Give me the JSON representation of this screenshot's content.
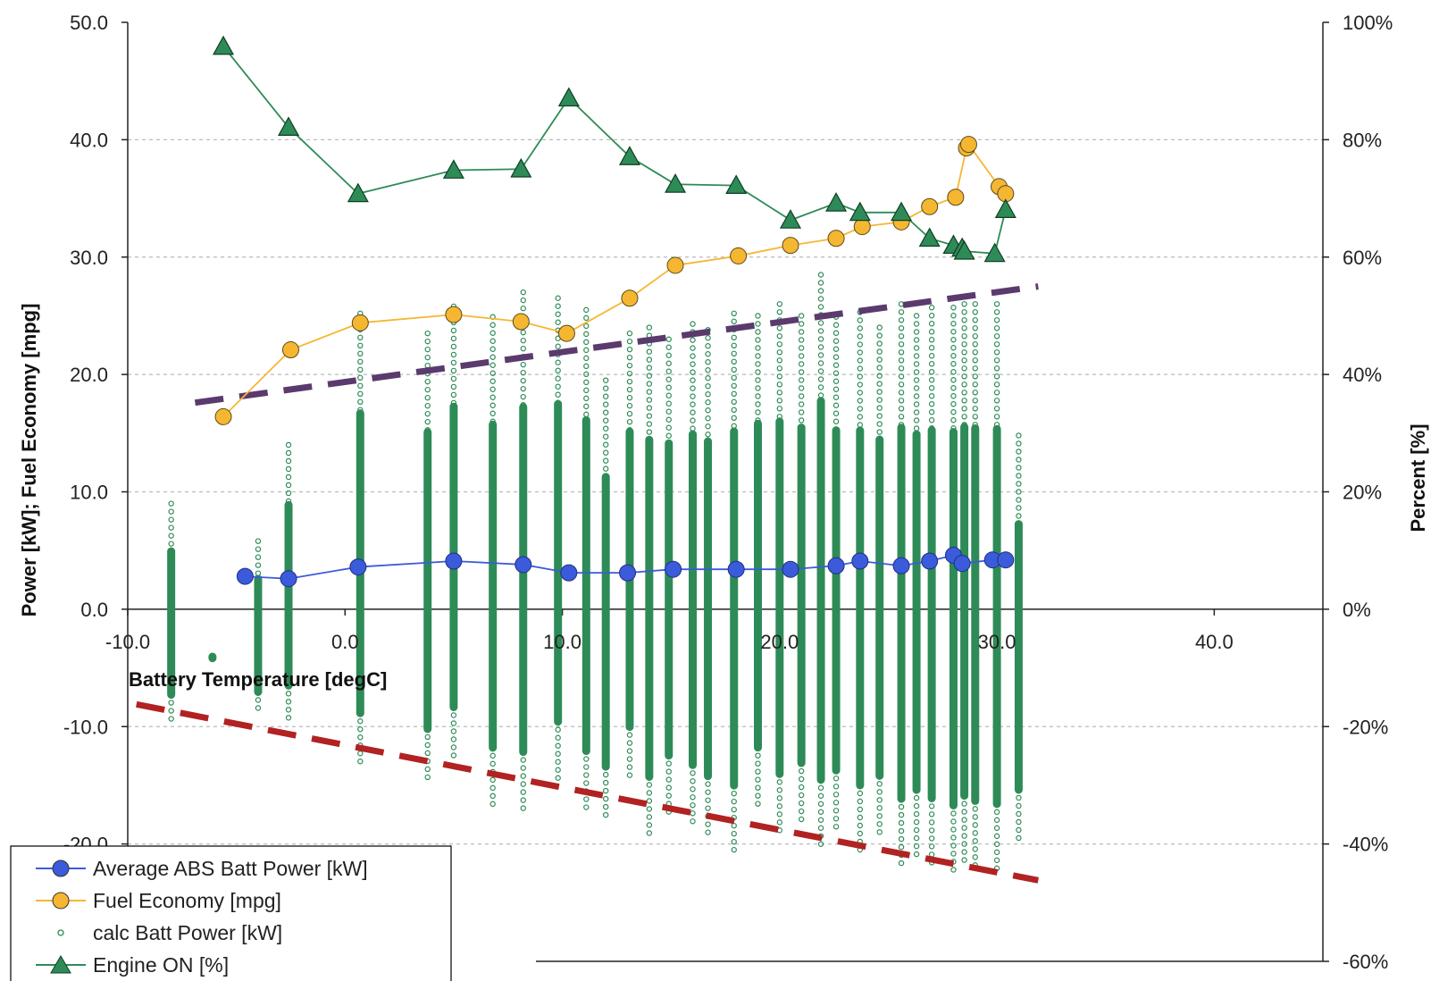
{
  "chart_data": {
    "type": "scatter",
    "xlabel": "Battery Temperature [degC]",
    "ylabel": "Power [kW]; Fuel Economy [mpg]",
    "y2label": "Percent [%]",
    "xlim": [
      -10,
      45
    ],
    "ylim": [
      -30,
      50
    ],
    "y2lim": [
      -60,
      100
    ],
    "grid": "horizontal dashed",
    "legend_position": "bottom-left",
    "x_ticks": [
      "-10.0",
      "0.0",
      "10.0",
      "20.0",
      "30.0",
      "40.0"
    ],
    "y_ticks": [
      "50.0",
      "40.0",
      "30.0",
      "20.0",
      "10.0",
      "0.0",
      "-10.0",
      "-20.0"
    ],
    "y2_ticks": [
      "100%",
      "80%",
      "60%",
      "40%",
      "20%",
      "0%",
      "-20%",
      "-40%",
      "-60%"
    ],
    "colors": {
      "abs_power": "#3b5bdb",
      "fuel_economy": "#f5b731",
      "batt_power": "#2e8b57",
      "engine_on": "#2e8b57",
      "upper_line": "#5b3a6e",
      "lower_line": "#b22222"
    },
    "series": [
      {
        "name": "Average ABS Batt Power [kW]",
        "axis": "left",
        "x": [
          -4.6,
          -2.6,
          0.6,
          5.0,
          8.2,
          10.3,
          13.0,
          15.1,
          18.0,
          20.5,
          22.6,
          23.7,
          25.6,
          26.9,
          28.0,
          28.4,
          29.8,
          30.4
        ],
        "y": [
          2.8,
          2.6,
          3.6,
          4.1,
          3.8,
          3.1,
          3.1,
          3.4,
          3.4,
          3.4,
          3.7,
          4.1,
          3.7,
          4.1,
          4.6,
          3.9,
          4.2,
          4.2
        ]
      },
      {
        "name": "Fuel Economy [mpg]",
        "axis": "left",
        "x": [
          -5.6,
          -2.5,
          0.7,
          5.0,
          8.1,
          10.2,
          13.1,
          15.2,
          18.1,
          20.5,
          22.6,
          23.8,
          25.6,
          26.9,
          28.1,
          28.6,
          28.7,
          30.1,
          30.4
        ],
        "y": [
          16.4,
          22.1,
          24.4,
          25.1,
          24.5,
          23.5,
          26.5,
          29.3,
          30.1,
          31.0,
          31.6,
          32.6,
          33.0,
          34.3,
          35.1,
          39.3,
          39.6,
          36.0,
          35.4
        ]
      },
      {
        "name": "calc Batt Power [kW]",
        "axis": "left",
        "note": "dense vertical bands of points at each temperature; values range between the min and max listed",
        "x": [
          -8.0,
          -6.1,
          -4.0,
          -2.6,
          0.7,
          3.8,
          5.0,
          6.8,
          8.2,
          9.8,
          11.1,
          12.0,
          13.1,
          14.0,
          14.9,
          16.0,
          16.7,
          17.9,
          19.0,
          20.0,
          21.0,
          21.9,
          22.6,
          23.7,
          24.6,
          25.6,
          26.3,
          27.0,
          28.0,
          28.5,
          29.0,
          30.0,
          31.0
        ],
        "ymin": [
          -9.5,
          -4.2,
          -8.8,
          -9.3,
          -13.5,
          -14.8,
          -13.0,
          -16.8,
          -17.5,
          -14.5,
          -17.2,
          -17.9,
          -14.6,
          -19.5,
          -17.3,
          -18.4,
          -19.4,
          -20.5,
          -16.8,
          -19.5,
          -18.3,
          -20.4,
          -19.0,
          -20.5,
          -19.4,
          -21.9,
          -20.9,
          -21.8,
          -22.5,
          -21.6,
          -22.1,
          -22.4,
          -19.5
        ],
        "ymax": [
          9.0,
          -4.0,
          5.8,
          14.0,
          25.2,
          23.5,
          25.8,
          24.9,
          27.0,
          26.5,
          25.5,
          19.5,
          23.5,
          24.0,
          23.0,
          24.3,
          23.8,
          25.2,
          25.0,
          26.0,
          25.0,
          28.5,
          24.9,
          25.3,
          24.0,
          26.0,
          25.0,
          25.7,
          25.7,
          26.0,
          26.0,
          26.0,
          14.8
        ]
      },
      {
        "name": "Engine ON [%]",
        "axis": "right",
        "x": [
          -5.6,
          -2.6,
          0.6,
          5.0,
          8.1,
          10.3,
          13.1,
          15.2,
          18.0,
          20.5,
          22.6,
          23.7,
          25.6,
          26.9,
          28.0,
          28.4,
          28.5,
          29.9,
          30.4
        ],
        "y": [
          95.9,
          82.1,
          70.8,
          74.8,
          75.0,
          87.1,
          77.1,
          72.4,
          72.2,
          66.3,
          69.2,
          67.6,
          67.6,
          63.2,
          62.0,
          61.5,
          61.0,
          60.6,
          68.1
        ]
      }
    ],
    "annotations": [
      {
        "type": "dashed-line",
        "color": "purple",
        "x": [
          -6.9,
          31.9
        ],
        "y": [
          17.6,
          27.5
        ]
      },
      {
        "type": "dashed-line",
        "color": "red",
        "x": [
          -9.6,
          31.9
        ],
        "y": [
          -8.1,
          -23.1
        ]
      }
    ]
  },
  "legend": {
    "items": [
      {
        "label": "Average ABS Batt Power [kW]",
        "marker": "circle",
        "color": "#3b5bdb"
      },
      {
        "label": "Fuel Economy [mpg]",
        "marker": "circle",
        "color": "#f5b731"
      },
      {
        "label": "calc Batt Power [kW]",
        "marker": "small-circle",
        "color": "#2e8b57"
      },
      {
        "label": "Engine ON [%]",
        "marker": "triangle",
        "color": "#2e8b57"
      }
    ]
  }
}
